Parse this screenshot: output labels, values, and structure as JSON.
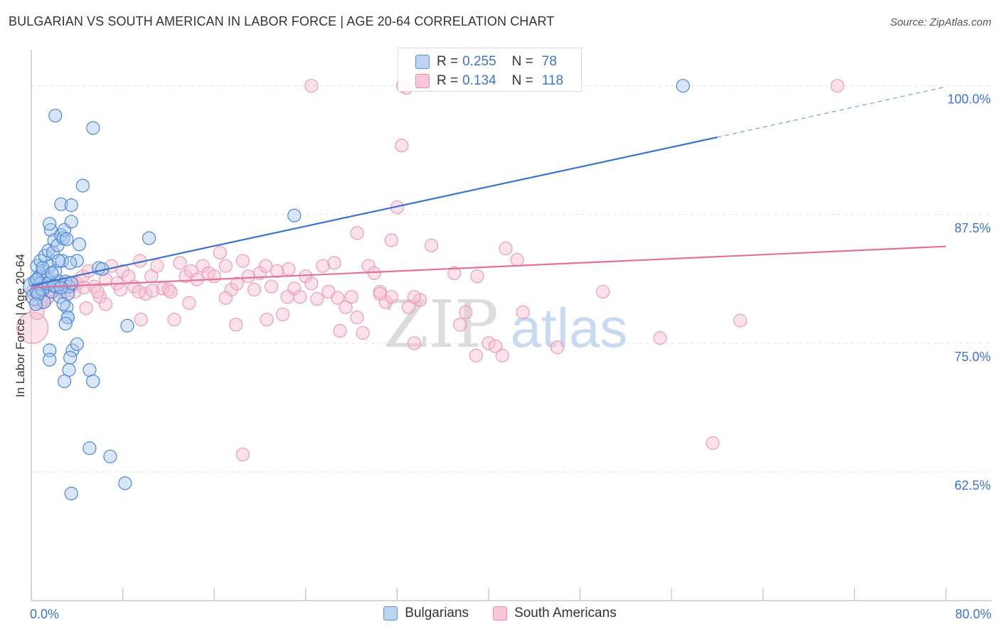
{
  "header": {
    "title": "BULGARIAN VS SOUTH AMERICAN IN LABOR FORCE | AGE 20-64 CORRELATION CHART",
    "source": "Source: ZipAtlas.com"
  },
  "watermark": {
    "part1": "ZIP",
    "part2": "atlas"
  },
  "colors": {
    "blue_fill": "#a9c7ee",
    "blue_stroke": "#4a86d8",
    "blue_line": "#3a74cf",
    "pink_fill": "#f7bfd0",
    "pink_stroke": "#eb9bb5",
    "pink_line": "#e0719a",
    "tick_label": "#3a74cf",
    "grid": "#e3e3e3"
  },
  "stats_legend": {
    "rows": [
      {
        "r_label": "R =",
        "r_value": "0.255",
        "n_label": "N =",
        "n_value": "78"
      },
      {
        "r_label": "R =",
        "r_value": "0.134",
        "n_label": "N =",
        "n_value": "118"
      }
    ]
  },
  "legend": {
    "items": [
      {
        "label": "Bulgarians"
      },
      {
        "label": "South Americans"
      }
    ]
  },
  "chart_data": {
    "type": "scatter",
    "title": "BULGARIAN VS SOUTH AMERICAN IN LABOR FORCE | AGE 20-64 CORRELATION CHART",
    "xlabel": "",
    "ylabel": "In Labor Force | Age 20-64",
    "xlim": [
      0,
      80
    ],
    "ylim": [
      50,
      103.5
    ],
    "x_tick_labels": [
      {
        "value": 0,
        "label": "0.0%"
      },
      {
        "value": 80,
        "label": "80.0%"
      }
    ],
    "x_tick_marks": [
      0,
      8,
      16,
      24,
      32,
      40,
      48,
      56,
      64,
      72,
      80
    ],
    "y_ticks": [
      {
        "value": 62.5,
        "label": "62.5%"
      },
      {
        "value": 75.0,
        "label": "75.0%"
      },
      {
        "value": 87.5,
        "label": "87.5%"
      },
      {
        "value": 100.0,
        "label": "100.0%"
      }
    ],
    "grid": true,
    "series": [
      {
        "name": "Bulgarians",
        "r": 0.255,
        "n": 78,
        "trend": {
          "x0": 0,
          "y0": 80.6,
          "x1": 60,
          "y1": 95.0,
          "dashed_to_x": 80,
          "dashed_to_y": 99.9
        },
        "points": [
          [
            0.2,
            80.5,
            14
          ],
          [
            0.3,
            79.5,
            12
          ],
          [
            0.4,
            81,
            10
          ],
          [
            0.5,
            82.5,
            9
          ],
          [
            0.6,
            80,
            11
          ],
          [
            0.7,
            81.5,
            9
          ],
          [
            0.8,
            83,
            9
          ],
          [
            0.9,
            80.3,
            9
          ],
          [
            1,
            82,
            9
          ],
          [
            1.1,
            79,
            9
          ],
          [
            1.2,
            83.5,
            9
          ],
          [
            1.3,
            80.5,
            9
          ],
          [
            1.4,
            81.5,
            9
          ],
          [
            1.5,
            84,
            9
          ],
          [
            1.6,
            82.5,
            9
          ],
          [
            1.7,
            86,
            9
          ],
          [
            1.8,
            80,
            9
          ],
          [
            1.9,
            83.8,
            9
          ],
          [
            2,
            85,
            9
          ],
          [
            2.1,
            82,
            9
          ],
          [
            2.2,
            80.5,
            9
          ],
          [
            2.3,
            84.5,
            9
          ],
          [
            2.4,
            81,
            9
          ],
          [
            2.5,
            79.5,
            9
          ],
          [
            2.6,
            85.5,
            9
          ],
          [
            2.7,
            83,
            9
          ],
          [
            2.8,
            85.2,
            9
          ],
          [
            2.9,
            86,
            9
          ],
          [
            3,
            81,
            9
          ],
          [
            3.1,
            78.5,
            9
          ],
          [
            3.2,
            77.5,
            9
          ],
          [
            3.3,
            80.5,
            9
          ],
          [
            0.8,
            80.8,
            9
          ],
          [
            1.0,
            80.2,
            9
          ],
          [
            1.5,
            80.8,
            9
          ],
          [
            2.0,
            80.6,
            9
          ],
          [
            0.5,
            81.2,
            9
          ],
          [
            0.6,
            79.8,
            9
          ],
          [
            2.1,
            97.1,
            9
          ],
          [
            5.4,
            95.9,
            9
          ],
          [
            4.5,
            90.3,
            9
          ],
          [
            2.6,
            88.5,
            9
          ],
          [
            3.5,
            88.4,
            9
          ],
          [
            1.6,
            86.6,
            9
          ],
          [
            3.5,
            86.8,
            9
          ],
          [
            3.1,
            85.1,
            9
          ],
          [
            4.2,
            84.6,
            9
          ],
          [
            4.0,
            83.0,
            9
          ],
          [
            3.4,
            82.8,
            9
          ],
          [
            1.0,
            82.3,
            9
          ],
          [
            3.2,
            79.8,
            9
          ],
          [
            2.8,
            78.8,
            9
          ],
          [
            3.2,
            77.5,
            9
          ],
          [
            3.0,
            76.9,
            9
          ],
          [
            3.5,
            80.8,
            9
          ],
          [
            2.6,
            80.4,
            9
          ],
          [
            5.9,
            82.3,
            9
          ],
          [
            6.2,
            82.2,
            9
          ],
          [
            10.3,
            85.2,
            9
          ],
          [
            8.4,
            76.7,
            9
          ],
          [
            23.0,
            87.4,
            9
          ],
          [
            57.0,
            100.0,
            9
          ],
          [
            1.6,
            74.3,
            9
          ],
          [
            3.6,
            74.3,
            9
          ],
          [
            4.0,
            74.9,
            9
          ],
          [
            1.6,
            73.4,
            9
          ],
          [
            3.4,
            73.6,
            9
          ],
          [
            3.3,
            72.4,
            9
          ],
          [
            5.1,
            72.4,
            9
          ],
          [
            2.9,
            71.3,
            9
          ],
          [
            5.4,
            71.3,
            9
          ],
          [
            5.1,
            64.8,
            9
          ],
          [
            6.9,
            64.0,
            9
          ],
          [
            8.2,
            61.4,
            9
          ],
          [
            3.5,
            60.4,
            9
          ],
          [
            0.4,
            78.8,
            9
          ],
          [
            1.8,
            81.8,
            9
          ],
          [
            2.4,
            83.0,
            9
          ]
        ]
      },
      {
        "name": "South Americans",
        "r": 0.134,
        "n": 118,
        "trend": {
          "x0": 0,
          "y0": 80.4,
          "x1": 80,
          "y1": 84.4
        },
        "points": [
          [
            0.1,
            76.5,
            22
          ],
          [
            0.3,
            80,
            12
          ],
          [
            0.5,
            78,
            10
          ],
          [
            0.8,
            79,
            10
          ],
          [
            1,
            80.5,
            9
          ],
          [
            1.5,
            79.5,
            9
          ],
          [
            2,
            80.5,
            9
          ],
          [
            2.5,
            80,
            9
          ],
          [
            3,
            81,
            9
          ],
          [
            3.5,
            80.5,
            9
          ],
          [
            4,
            80.8,
            9
          ],
          [
            4.5,
            81.5,
            9
          ],
          [
            5,
            82,
            9
          ],
          [
            5.5,
            80.5,
            9
          ],
          [
            6,
            79.5,
            9
          ],
          [
            6.5,
            81.2,
            9
          ],
          [
            7,
            82.5,
            9
          ],
          [
            7.5,
            80.8,
            9
          ],
          [
            8,
            82,
            9
          ],
          [
            8.5,
            81.5,
            9
          ],
          [
            9,
            80.5,
            9
          ],
          [
            9.5,
            83,
            9
          ],
          [
            10,
            79.8,
            9
          ],
          [
            10.5,
            81.5,
            9
          ],
          [
            11,
            82.5,
            9
          ],
          [
            11.5,
            80.3,
            9
          ],
          [
            12,
            80.2,
            9
          ],
          [
            12.5,
            77.3,
            9
          ],
          [
            13,
            82.8,
            9
          ],
          [
            13.5,
            81.5,
            9
          ],
          [
            14,
            82,
            9
          ],
          [
            14.5,
            81.2,
            9
          ],
          [
            15,
            82.5,
            9
          ],
          [
            15.5,
            81.8,
            9
          ],
          [
            16,
            81.5,
            9
          ],
          [
            16.5,
            83.8,
            9
          ],
          [
            17,
            82.5,
            9
          ],
          [
            17.5,
            80.2,
            9
          ],
          [
            18,
            80.8,
            9
          ],
          [
            18.5,
            83,
            9
          ],
          [
            19,
            81.5,
            9
          ],
          [
            19.5,
            80.2,
            9
          ],
          [
            20,
            81.8,
            9
          ],
          [
            20.5,
            82.5,
            9
          ],
          [
            21,
            80.5,
            9
          ],
          [
            21.5,
            82,
            9
          ],
          [
            22,
            77.8,
            9
          ],
          [
            22.5,
            82.2,
            9
          ],
          [
            23,
            80.3,
            9
          ],
          [
            23.5,
            79.5,
            9
          ],
          [
            24,
            81.5,
            9
          ],
          [
            24.5,
            80.8,
            9
          ],
          [
            25,
            79.3,
            9
          ],
          [
            25.5,
            82.5,
            9
          ],
          [
            26,
            80,
            9
          ],
          [
            26.5,
            82.8,
            9
          ],
          [
            27,
            76.2,
            9
          ],
          [
            27.5,
            78.5,
            9
          ],
          [
            28,
            79.5,
            9
          ],
          [
            28.5,
            77.5,
            9
          ],
          [
            29,
            76,
            9
          ],
          [
            29.5,
            82.5,
            9
          ],
          [
            30,
            81.8,
            9
          ],
          [
            30.5,
            80,
            9
          ],
          [
            31,
            79,
            9
          ],
          [
            31.5,
            79.5,
            9
          ],
          [
            32,
            88.2,
            9
          ],
          [
            33,
            78.5,
            9
          ],
          [
            33.5,
            75,
            9
          ],
          [
            34,
            79.2,
            9
          ],
          [
            35,
            84.5,
            9
          ],
          [
            37.5,
            76.8,
            9
          ],
          [
            38,
            78,
            9
          ],
          [
            39,
            81.5,
            9
          ],
          [
            40,
            75,
            9
          ],
          [
            43,
            78,
            9
          ],
          [
            46,
            74.6,
            9
          ],
          [
            50,
            80,
            9
          ],
          [
            55,
            75.5,
            9
          ],
          [
            62,
            77.2,
            9
          ],
          [
            24.5,
            100,
            9
          ],
          [
            32.5,
            100,
            9
          ],
          [
            32.8,
            99.8,
            9
          ],
          [
            70.5,
            100,
            9
          ],
          [
            32.4,
            94.2,
            9
          ],
          [
            28.5,
            85.7,
            9
          ],
          [
            31.5,
            85.0,
            9
          ],
          [
            41.5,
            84.2,
            9
          ],
          [
            42.5,
            83.1,
            9
          ],
          [
            37,
            81.8,
            9
          ],
          [
            33.5,
            79.5,
            9
          ],
          [
            30.5,
            79.8,
            9
          ],
          [
            26.8,
            79.4,
            9
          ],
          [
            22.4,
            79.5,
            9
          ],
          [
            40.6,
            74.7,
            9
          ],
          [
            41.2,
            73.8,
            9
          ],
          [
            38.9,
            73.8,
            9
          ],
          [
            18.5,
            64.2,
            9
          ],
          [
            59.6,
            65.3,
            9
          ],
          [
            17.9,
            76.8,
            9
          ],
          [
            20.6,
            77.3,
            9
          ],
          [
            17.0,
            79.4,
            9
          ],
          [
            13.8,
            78.9,
            9
          ],
          [
            9.6,
            77.3,
            9
          ],
          [
            6.5,
            78.8,
            9
          ],
          [
            4.8,
            78.4,
            9
          ],
          [
            2.9,
            80.0,
            9
          ],
          [
            1.3,
            79.2,
            9
          ],
          [
            0.8,
            80.2,
            9
          ],
          [
            1.7,
            80.0,
            9
          ],
          [
            2.4,
            80.3,
            9
          ],
          [
            3.8,
            80.0,
            9
          ],
          [
            4.6,
            80.4,
            9
          ],
          [
            5.8,
            80.0,
            9
          ],
          [
            7.8,
            80.2,
            9
          ],
          [
            9.4,
            80.0,
            9
          ],
          [
            10.6,
            80.1,
            9
          ],
          [
            12.2,
            80.0,
            9
          ]
        ]
      }
    ]
  }
}
